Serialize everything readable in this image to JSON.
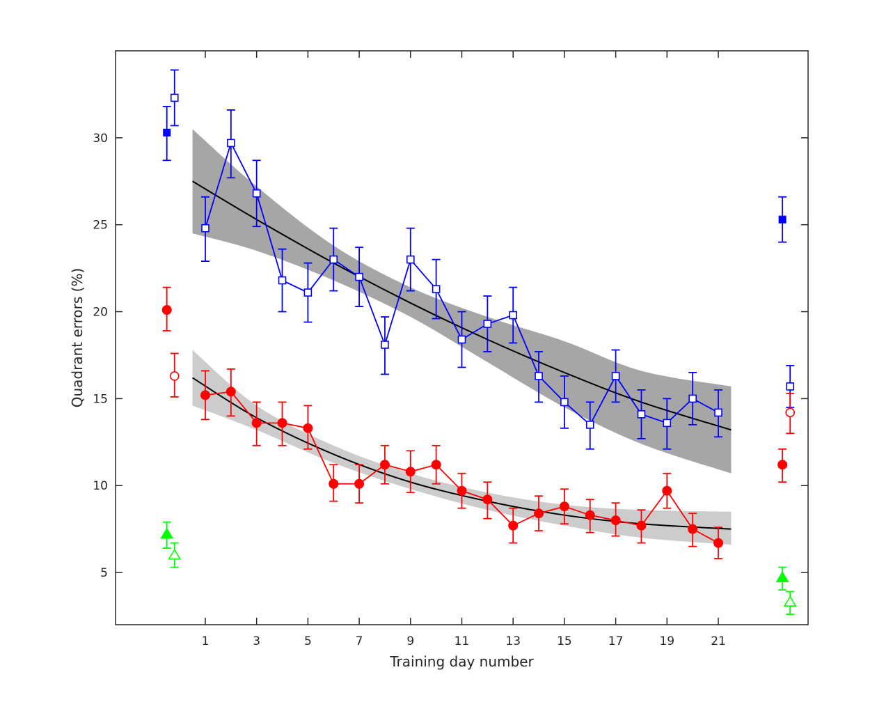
{
  "chart_data": {
    "type": "line",
    "title": "",
    "xlabel": "Training day number",
    "ylabel": "Quadrant errors (%)",
    "xlim": [
      -2.5,
      24.5
    ],
    "ylim": [
      2,
      35
    ],
    "xticks": [
      1,
      3,
      5,
      7,
      9,
      11,
      13,
      15,
      17,
      19,
      21
    ],
    "yticks": [
      5,
      10,
      15,
      20,
      25,
      30
    ],
    "grid": false,
    "legend": null,
    "colors": {
      "blue": "#0000ff",
      "red": "#ff0000",
      "green": "#00ff00",
      "fit": "#000000",
      "band_dark": "#a6a6a6",
      "band_light": "#cccccc",
      "axes": "#262626"
    },
    "series": [
      {
        "color": "#0000ff",
        "marker": "square-open",
        "connected": true,
        "x": [
          1,
          2,
          3,
          4,
          5,
          6,
          7,
          8,
          9,
          10,
          11,
          12,
          13,
          14,
          15,
          16,
          17,
          18,
          19,
          20,
          21
        ],
        "y": [
          24.8,
          29.7,
          26.8,
          21.8,
          21.1,
          23.0,
          22.0,
          18.1,
          23.0,
          21.3,
          18.4,
          19.3,
          19.8,
          16.3,
          14.8,
          13.5,
          16.3,
          14.1,
          13.6,
          15.0,
          14.2
        ],
        "err_low": [
          22.9,
          27.7,
          24.9,
          20.0,
          19.4,
          21.2,
          20.3,
          16.4,
          21.2,
          19.6,
          16.8,
          17.7,
          18.2,
          14.8,
          13.3,
          12.1,
          14.8,
          12.7,
          12.1,
          13.5,
          12.8
        ],
        "err_high": [
          26.6,
          31.6,
          28.7,
          23.6,
          22.8,
          24.8,
          23.7,
          19.7,
          24.8,
          23.0,
          20.0,
          20.9,
          21.4,
          17.7,
          16.3,
          14.8,
          17.8,
          15.5,
          15.0,
          16.5,
          15.5
        ]
      },
      {
        "color": "#ff0000",
        "marker": "circle-filled",
        "connected": true,
        "x": [
          1,
          2,
          3,
          4,
          5,
          6,
          7,
          8,
          9,
          10,
          11,
          12,
          13,
          14,
          15,
          16,
          17,
          18,
          19,
          20,
          21
        ],
        "y": [
          15.2,
          15.4,
          13.6,
          13.6,
          13.3,
          10.1,
          10.1,
          11.2,
          10.8,
          11.2,
          9.7,
          9.2,
          7.7,
          8.4,
          8.8,
          8.3,
          8.0,
          7.7,
          9.7,
          7.5,
          6.7
        ],
        "err_low": [
          13.8,
          14.0,
          12.3,
          12.3,
          12.1,
          9.1,
          9.0,
          10.1,
          9.6,
          10.1,
          8.7,
          8.1,
          6.7,
          7.4,
          7.8,
          7.3,
          7.1,
          6.7,
          8.7,
          6.5,
          5.8
        ],
        "err_high": [
          16.6,
          16.7,
          14.8,
          14.8,
          14.6,
          11.2,
          11.2,
          12.3,
          12.0,
          12.3,
          10.7,
          10.2,
          8.7,
          9.4,
          9.8,
          9.2,
          9.0,
          8.6,
          10.7,
          8.4,
          7.6
        ]
      },
      {
        "color": "#0000ff",
        "marker": "square-filled",
        "connected": false,
        "x": [
          -0.5,
          23.5
        ],
        "y": [
          30.3,
          25.3
        ],
        "err_low": [
          28.7,
          24.0
        ],
        "err_high": [
          31.8,
          26.6
        ]
      },
      {
        "color": "#0000ff",
        "marker": "square-open",
        "connected": false,
        "x": [
          -0.2,
          23.8
        ],
        "y": [
          32.3,
          15.7
        ],
        "err_low": [
          30.7,
          14.5
        ],
        "err_high": [
          33.9,
          16.9
        ]
      },
      {
        "color": "#ff0000",
        "marker": "circle-filled",
        "connected": false,
        "x": [
          -0.5,
          23.5
        ],
        "y": [
          20.1,
          11.2
        ],
        "err_low": [
          18.9,
          10.2
        ],
        "err_high": [
          21.4,
          12.1
        ]
      },
      {
        "color": "#ff0000",
        "marker": "circle-open",
        "connected": false,
        "x": [
          -0.2,
          23.8
        ],
        "y": [
          16.3,
          14.2
        ],
        "err_low": [
          15.1,
          13.0
        ],
        "err_high": [
          17.6,
          15.3
        ]
      },
      {
        "color": "#00ff00",
        "marker": "triangle-filled",
        "connected": false,
        "x": [
          -0.5,
          23.5
        ],
        "y": [
          7.2,
          4.7
        ],
        "err_low": [
          6.4,
          4.0
        ],
        "err_high": [
          7.9,
          5.3
        ]
      },
      {
        "color": "#00ff00",
        "marker": "triangle-open",
        "connected": false,
        "x": [
          -0.2,
          23.8
        ],
        "y": [
          6.0,
          3.3
        ],
        "err_low": [
          5.3,
          2.6
        ],
        "err_high": [
          6.7,
          3.9
        ]
      }
    ],
    "fits": [
      {
        "color": "#000000",
        "band_color": "#a6a6a6",
        "x": [
          0.5,
          3,
          6,
          9,
          12,
          15,
          18,
          21.5
        ],
        "y": [
          27.5,
          25.3,
          22.8,
          20.5,
          18.4,
          16.5,
          14.8,
          13.2
        ],
        "band_low": [
          24.5,
          23.5,
          21.8,
          19.7,
          17.1,
          14.5,
          12.4,
          10.7
        ],
        "band_high": [
          30.5,
          27.2,
          23.8,
          21.4,
          19.7,
          18.3,
          16.6,
          15.7
        ]
      },
      {
        "color": "#000000",
        "band_color": "#cccccc",
        "x": [
          0.5,
          3,
          6,
          9,
          12,
          15,
          18,
          21.5
        ],
        "y": [
          16.2,
          13.9,
          11.8,
          10.2,
          9.1,
          8.3,
          7.8,
          7.5
        ],
        "band_low": [
          14.6,
          13.2,
          11.3,
          9.8,
          8.6,
          7.7,
          7.0,
          6.6
        ],
        "band_high": [
          17.8,
          14.6,
          12.3,
          10.7,
          9.6,
          8.9,
          8.6,
          8.5
        ]
      }
    ]
  }
}
